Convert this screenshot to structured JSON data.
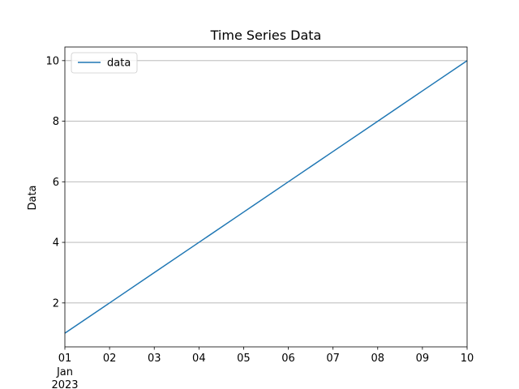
{
  "chart_data": {
    "type": "line",
    "title": "Time Series Data",
    "xlabel": "",
    "ylabel": "Data",
    "x": [
      "2023-01-01",
      "2023-01-02",
      "2023-01-03",
      "2023-01-04",
      "2023-01-05",
      "2023-01-06",
      "2023-01-07",
      "2023-01-08",
      "2023-01-09",
      "2023-01-10"
    ],
    "x_tick_labels": [
      "01",
      "02",
      "03",
      "04",
      "05",
      "06",
      "07",
      "08",
      "09",
      "10"
    ],
    "x_tick_sublabel": {
      "month": "Jan",
      "year": "2023"
    },
    "series": [
      {
        "name": "data",
        "values": [
          1,
          2,
          3,
          4,
          5,
          6,
          7,
          8,
          9,
          10
        ],
        "color": "#1f77b4"
      }
    ],
    "ylim": [
      0.55,
      10.45
    ],
    "y_ticks": [
      2,
      4,
      6,
      8,
      10
    ],
    "y_tick_labels": [
      "2",
      "4",
      "6",
      "8",
      "10"
    ],
    "grid": "y-major",
    "legend_position": "upper left"
  }
}
